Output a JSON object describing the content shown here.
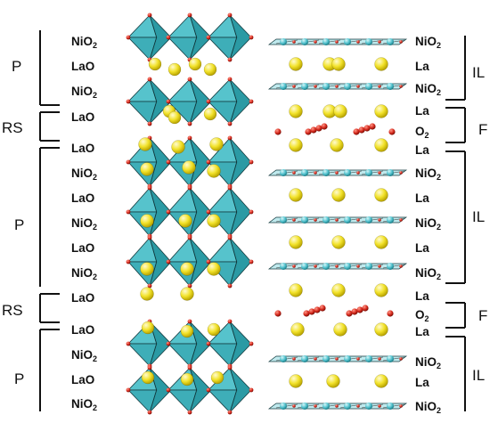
{
  "left_layers": [
    "NiO2",
    "LaO",
    "NiO2",
    "LaO",
    "LaO",
    "NiO2",
    "LaO",
    "NiO2",
    "LaO",
    "NiO2",
    "LaO",
    "LaO",
    "NiO2",
    "LaO",
    "NiO2"
  ],
  "right_layers": [
    "NiO2",
    "La",
    "NiO2",
    "La",
    "O2",
    "La",
    "NiO2",
    "La",
    "NiO2",
    "La",
    "NiO2",
    "La",
    "O2",
    "La",
    "NiO2",
    "La",
    "NiO2"
  ],
  "left_blocks": [
    "P",
    "RS",
    "P",
    "RS",
    "P"
  ],
  "right_blocks": [
    "IL",
    "F",
    "IL",
    "F",
    "IL"
  ],
  "colors": {
    "octahedron_front": "#56c3cc",
    "octahedron_side": "#2b9aa4",
    "octahedron_edge": "#123a3e",
    "la_atom": "#f2e22a",
    "oxygen_atom": "#d62a1e",
    "ni_atom": "#4fc0cc"
  }
}
